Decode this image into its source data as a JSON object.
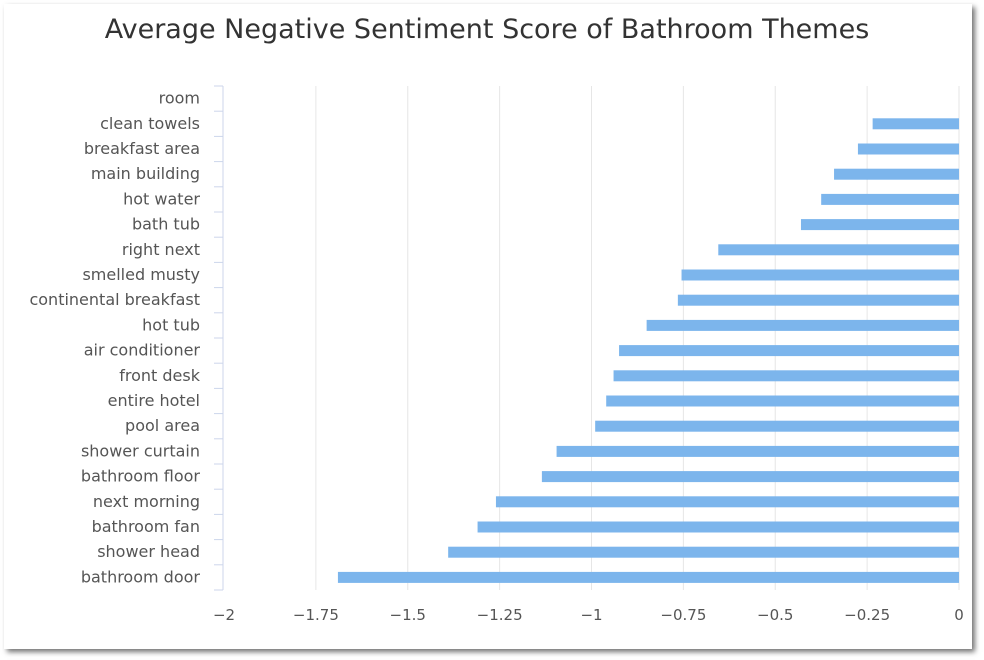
{
  "chart_data": {
    "type": "bar",
    "orientation": "horizontal",
    "title": "Average Negative Sentiment Score of Bathroom Themes",
    "xlabel": "",
    "ylabel": "",
    "xlim": [
      -2,
      0
    ],
    "x_ticks": [
      "-2",
      "-1.75",
      "-1.5",
      "-1.25",
      "-1",
      "-0.75",
      "-0.5",
      "-0.25",
      "0"
    ],
    "x_tick_values": [
      -2,
      -1.75,
      -1.5,
      -1.25,
      -1,
      -0.75,
      -0.5,
      -0.25,
      0
    ],
    "grid": "vertical",
    "legend": "none",
    "bar_color": "#7cb5ec",
    "categories": [
      "room",
      "clean towels",
      "breakfast area",
      "main building",
      "hot water",
      "bath tub",
      "right next",
      "smelled musty",
      "continental breakfast",
      "hot tub",
      "air conditioner",
      "front desk",
      "entire hotel",
      "pool area",
      "shower curtain",
      "bathroom floor",
      "next morning",
      "bathroom fan",
      "shower head",
      "bathroom door"
    ],
    "values": [
      0,
      -0.235,
      -0.275,
      -0.34,
      -0.375,
      -0.43,
      -0.655,
      -0.755,
      -0.765,
      -0.85,
      -0.925,
      -0.94,
      -0.96,
      -0.99,
      -1.095,
      -1.135,
      -1.26,
      -1.31,
      -1.39,
      -1.69
    ]
  }
}
